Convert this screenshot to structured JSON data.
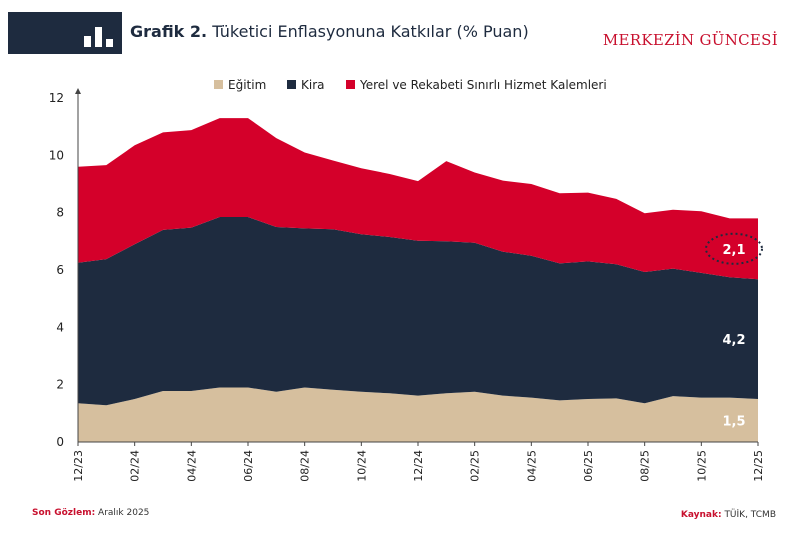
{
  "header": {
    "title_bold": "Grafik 2.",
    "title_rest": " Tüketici Enflasyonuna Katkılar (% Puan)",
    "brand": "MERKEZİN GÜNCESİ",
    "icon": "bar-chart-icon"
  },
  "footer": {
    "obs_label": "Son Gözlem:",
    "obs_value": " Aralık 2025",
    "src_label": "Kaynak:",
    "src_value": " TÜİK, TCMB"
  },
  "colors": {
    "egitim": "#d6bf9e",
    "kira": "#1e2b3f",
    "yerel": "#d4002a",
    "navy": "#1e2b3f"
  },
  "chart_data": {
    "type": "area",
    "stacked": true,
    "x": [
      "12/23",
      "01/24",
      "02/24",
      "03/24",
      "04/24",
      "05/24",
      "06/24",
      "07/24",
      "08/24",
      "09/24",
      "10/24",
      "11/24",
      "12/24",
      "01/25",
      "02/25",
      "03/25",
      "04/25",
      "05/25",
      "06/25",
      "07/25",
      "08/25",
      "09/25",
      "10/25",
      "11/25",
      "12/25"
    ],
    "xticks": [
      "12/23",
      "02/24",
      "04/24",
      "06/24",
      "08/24",
      "10/24",
      "12/24",
      "02/25",
      "04/25",
      "06/25",
      "08/25",
      "10/25",
      "12/25"
    ],
    "ylim": [
      0,
      12
    ],
    "yticks": [
      0,
      2,
      4,
      6,
      8,
      10,
      12
    ],
    "series": [
      {
        "name": "Eğitim",
        "values": [
          1.35,
          1.28,
          1.5,
          1.78,
          1.78,
          1.9,
          1.9,
          1.75,
          1.9,
          1.82,
          1.75,
          1.7,
          1.62,
          1.7,
          1.75,
          1.62,
          1.55,
          1.45,
          1.5,
          1.52,
          1.35,
          1.6,
          1.55,
          1.55,
          1.5
        ]
      },
      {
        "name": "Kira",
        "values": [
          4.9,
          5.1,
          5.4,
          5.62,
          5.7,
          5.95,
          5.95,
          5.75,
          5.55,
          5.6,
          5.5,
          5.45,
          5.4,
          5.3,
          5.2,
          5.02,
          4.95,
          4.78,
          4.8,
          4.68,
          4.58,
          4.45,
          4.35,
          4.2,
          4.18
        ]
      },
      {
        "name": "Yerel ve Rekabeti Sınırlı Hizmet Kalemleri",
        "values": [
          3.35,
          3.28,
          3.45,
          3.4,
          3.4,
          3.45,
          3.45,
          3.1,
          2.65,
          2.4,
          2.3,
          2.2,
          2.08,
          2.8,
          2.45,
          2.48,
          2.5,
          2.45,
          2.4,
          2.28,
          2.05,
          2.05,
          2.15,
          2.05,
          2.12
        ]
      }
    ],
    "data_labels": [
      {
        "text": "1,5",
        "series": 0,
        "x_index": 24
      },
      {
        "text": "4,2",
        "series": 1,
        "x_index": 24
      },
      {
        "text": "2,1",
        "series": 2,
        "x_index": 24
      }
    ],
    "grid": false,
    "legend": "top"
  }
}
